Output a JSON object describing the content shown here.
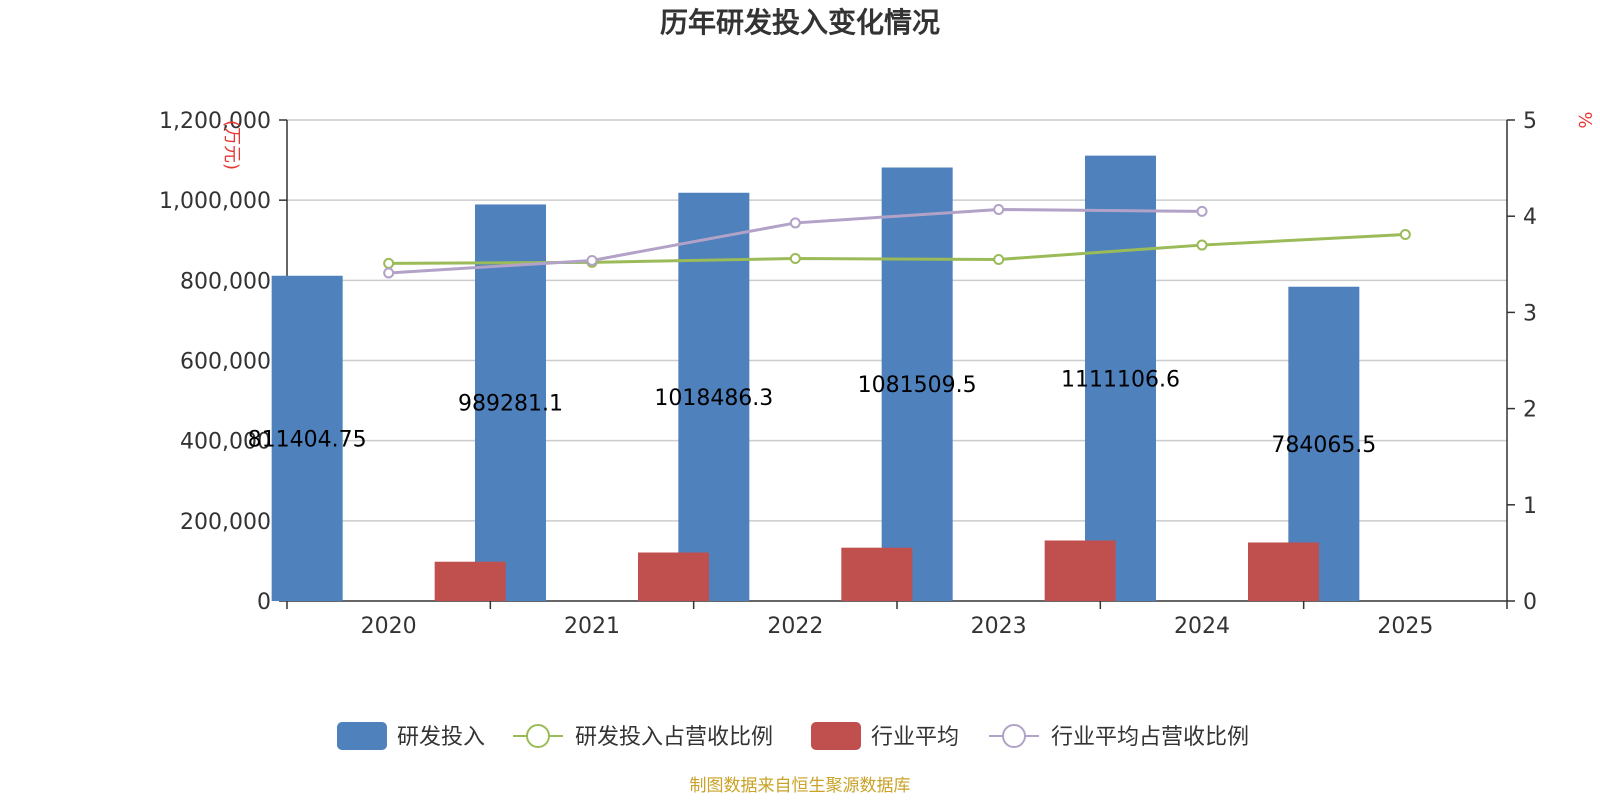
{
  "chart_data": {
    "type": "bar",
    "title": "历年研发投入变化情况",
    "categories": [
      "2020",
      "2021",
      "2022",
      "2023",
      "2024",
      "2025"
    ],
    "y_left": {
      "unit_label": "(万元)",
      "range": [
        0,
        1200000
      ],
      "ticks": [
        "0",
        "200,000",
        "400,000",
        "600,000",
        "800,000",
        "1,000,000",
        "1,200,000"
      ]
    },
    "y_right": {
      "unit_label": "%",
      "range": [
        0,
        5
      ],
      "ticks": [
        "0",
        "1",
        "2",
        "3",
        "4",
        "5"
      ]
    },
    "grid": true,
    "legend_position": "bottom",
    "series": [
      {
        "name": "研发投入",
        "kind": "bar",
        "axis": "left",
        "color": "#4f81bd",
        "values": [
          811404.75,
          989281.1,
          1018486.3,
          1081509.5,
          1111106.6,
          784065.5
        ],
        "labels": [
          "811404.75",
          "989281.1",
          "1018486.3",
          "1081509.5",
          "1111106.6",
          "784065.5"
        ]
      },
      {
        "name": "研发投入占营收比例",
        "kind": "line",
        "axis": "right",
        "color": "#9bbb59",
        "values": [
          3.51,
          3.52,
          3.56,
          3.55,
          3.7,
          3.81
        ]
      },
      {
        "name": "行业平均",
        "kind": "bar",
        "axis": "left",
        "color": "#c0504d",
        "values": [
          98000,
          121000,
          133000,
          151000,
          146000,
          null
        ]
      },
      {
        "name": "行业平均占营收比例",
        "kind": "line",
        "axis": "right",
        "color": "#b3a2c7",
        "values": [
          3.41,
          3.54,
          3.93,
          4.07,
          4.05,
          null
        ]
      }
    ],
    "source": "制图数据来自恒生聚源数据库"
  }
}
